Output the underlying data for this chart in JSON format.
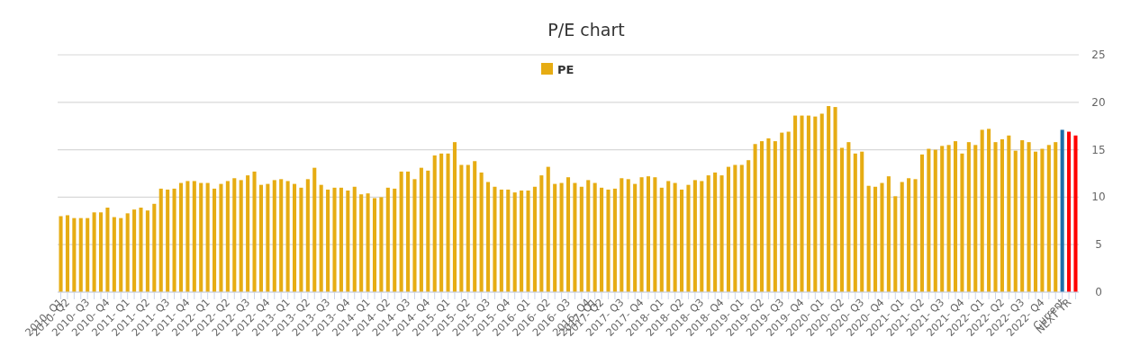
{
  "chart_data": {
    "type": "bar",
    "title": "P/E chart",
    "categories": [
      "2010- Q1",
      "2010- Q2",
      null,
      null,
      "2010- Q3",
      null,
      null,
      "2010- Q4",
      null,
      null,
      "2011- Q1",
      null,
      null,
      "2011- Q2",
      null,
      null,
      "2011- Q3",
      null,
      null,
      "2011- Q4",
      null,
      null,
      "2012- Q1",
      null,
      null,
      "2012- Q2",
      null,
      null,
      "2012- Q3",
      null,
      null,
      "2012- Q4",
      null,
      null,
      "2013- Q1",
      null,
      null,
      "2013- Q2",
      null,
      null,
      "2013- Q3",
      null,
      null,
      "2013- Q4",
      null,
      null,
      "2014- Q1",
      null,
      null,
      "2014- Q2",
      null,
      null,
      "2014- Q3",
      null,
      null,
      "2014- Q4",
      null,
      null,
      "2015- Q1",
      null,
      null,
      "2015- Q2",
      null,
      null,
      "2015- Q3",
      null,
      null,
      "2015- Q4",
      null,
      null,
      "2016- Q1",
      null,
      null,
      "2016- Q2",
      null,
      null,
      "2016- Q3",
      null,
      null,
      "2016- Q4",
      "2017- Q1",
      "2017- Q2",
      null,
      null,
      "2017- Q3",
      null,
      null,
      "2017- Q4",
      null,
      null,
      "2018- Q1",
      null,
      null,
      "2018- Q2",
      null,
      null,
      "2018- Q3",
      null,
      null,
      "2018- Q4",
      null,
      null,
      "2019- Q1",
      null,
      null,
      "2019- Q2",
      null,
      null,
      "2019- Q3",
      null,
      null,
      "2019- Q4",
      null,
      null,
      "2020- Q1",
      null,
      null,
      "2020- Q2",
      null,
      null,
      "2020- Q3",
      null,
      null,
      "2020- Q4",
      null,
      null,
      "2021- Q1",
      null,
      null,
      "2021- Q2",
      null,
      null,
      "2021- Q3",
      null,
      null,
      "2021- Q4",
      null,
      null,
      "2022- Q1",
      null,
      null,
      "2022- Q2",
      null,
      null,
      "2022- Q3",
      null,
      null,
      "2022- Q4",
      null,
      null,
      "Current",
      "NEXT YR",
      null
    ],
    "series": [
      {
        "name": "PE",
        "color": "#e6ac13",
        "values": [
          8.0,
          8.1,
          7.8,
          7.8,
          7.8,
          8.4,
          8.4,
          8.9,
          7.9,
          7.8,
          8.3,
          8.7,
          8.9,
          8.6,
          9.3,
          10.9,
          10.8,
          10.9,
          11.5,
          11.7,
          11.7,
          11.5,
          11.5,
          10.9,
          11.4,
          11.7,
          12.0,
          11.8,
          12.3,
          12.7,
          11.3,
          11.4,
          11.8,
          11.9,
          11.7,
          11.4,
          11.0,
          11.9,
          13.1,
          11.3,
          10.8,
          11.0,
          11.0,
          10.7,
          11.1,
          10.3,
          10.4,
          9.9,
          10.0,
          11.0,
          10.9,
          12.7,
          12.7,
          11.9,
          13.1,
          12.8,
          14.4,
          14.6,
          14.6,
          15.8,
          13.4,
          13.4,
          13.8,
          12.6,
          11.6,
          11.1,
          10.8,
          10.8,
          10.5,
          10.7,
          10.7,
          11.1,
          12.3,
          13.2,
          11.4,
          11.5,
          12.1,
          11.5,
          11.1,
          11.8,
          11.5,
          11.0,
          10.8,
          10.9,
          12.0,
          11.9,
          11.4,
          12.1,
          12.2,
          12.1,
          11.0,
          11.7,
          11.5,
          10.8,
          11.3,
          11.8,
          11.7,
          12.3,
          12.6,
          12.3,
          13.2,
          13.4,
          13.4,
          13.9,
          15.6,
          15.9,
          16.2,
          15.9,
          16.8,
          16.9,
          18.6,
          18.6,
          18.6,
          18.5,
          18.8,
          19.6,
          19.5,
          15.2,
          15.8,
          14.6,
          14.8,
          11.2,
          11.1,
          11.5,
          12.2,
          10.1,
          11.6,
          12.0,
          11.9,
          14.5,
          15.1,
          15.0,
          15.4,
          15.5,
          15.9,
          14.6,
          15.8,
          15.5,
          17.1,
          17.2,
          15.8,
          16.1,
          16.5,
          14.9,
          16.0,
          15.8,
          14.8,
          15.1,
          15.5,
          15.8,
          17.1,
          16.9,
          16.5
        ],
        "colors": [
          "#e6ac13",
          "#e6ac13",
          "#e6ac13",
          "#e6ac13",
          "#e6ac13",
          "#e6ac13",
          "#e6ac13",
          "#e6ac13",
          "#e6ac13",
          "#e6ac13",
          "#e6ac13",
          "#e6ac13",
          "#e6ac13",
          "#e6ac13",
          "#e6ac13",
          "#e6ac13",
          "#e6ac13",
          "#e6ac13",
          "#e6ac13",
          "#e6ac13",
          "#e6ac13",
          "#e6ac13",
          "#e6ac13",
          "#e6ac13",
          "#e6ac13",
          "#e6ac13",
          "#e6ac13",
          "#e6ac13",
          "#e6ac13",
          "#e6ac13",
          "#e6ac13",
          "#e6ac13",
          "#e6ac13",
          "#e6ac13",
          "#e6ac13",
          "#e6ac13",
          "#e6ac13",
          "#e6ac13",
          "#e6ac13",
          "#e6ac13",
          "#e6ac13",
          "#e6ac13",
          "#e6ac13",
          "#e6ac13",
          "#e6ac13",
          "#e6ac13",
          "#e6ac13",
          "#e6ac13",
          "#e6ac13",
          "#e6ac13",
          "#e6ac13",
          "#e6ac13",
          "#e6ac13",
          "#e6ac13",
          "#e6ac13",
          "#e6ac13",
          "#e6ac13",
          "#e6ac13",
          "#e6ac13",
          "#e6ac13",
          "#e6ac13",
          "#e6ac13",
          "#e6ac13",
          "#e6ac13",
          "#e6ac13",
          "#e6ac13",
          "#e6ac13",
          "#e6ac13",
          "#e6ac13",
          "#e6ac13",
          "#e6ac13",
          "#e6ac13",
          "#e6ac13",
          "#e6ac13",
          "#e6ac13",
          "#e6ac13",
          "#e6ac13",
          "#e6ac13",
          "#e6ac13",
          "#e6ac13",
          "#e6ac13",
          "#e6ac13",
          "#e6ac13",
          "#e6ac13",
          "#e6ac13",
          "#e6ac13",
          "#e6ac13",
          "#e6ac13",
          "#e6ac13",
          "#e6ac13",
          "#e6ac13",
          "#e6ac13",
          "#e6ac13",
          "#e6ac13",
          "#e6ac13",
          "#e6ac13",
          "#e6ac13",
          "#e6ac13",
          "#e6ac13",
          "#e6ac13",
          "#e6ac13",
          "#e6ac13",
          "#e6ac13",
          "#e6ac13",
          "#e6ac13",
          "#e6ac13",
          "#e6ac13",
          "#e6ac13",
          "#e6ac13",
          "#e6ac13",
          "#e6ac13",
          "#e6ac13",
          "#e6ac13",
          "#e6ac13",
          "#e6ac13",
          "#e6ac13",
          "#e6ac13",
          "#e6ac13",
          "#e6ac13",
          "#e6ac13",
          "#e6ac13",
          "#e6ac13",
          "#e6ac13",
          "#e6ac13",
          "#e6ac13",
          "#e6ac13",
          "#e6ac13",
          "#e6ac13",
          "#e6ac13",
          "#e6ac13",
          "#e6ac13",
          "#e6ac13",
          "#e6ac13",
          "#e6ac13",
          "#e6ac13",
          "#e6ac13",
          "#e6ac13",
          "#e6ac13",
          "#e6ac13",
          "#e6ac13",
          "#e6ac13",
          "#e6ac13",
          "#e6ac13",
          "#e6ac13",
          "#e6ac13",
          "#e6ac13",
          "#e6ac13",
          "#e6ac13",
          "#e6ac13",
          "#e6ac13",
          "#1f6fa8",
          "#ff0000",
          "#ff0000"
        ]
      }
    ],
    "ylim": [
      0,
      25
    ],
    "yticks": [
      0,
      5,
      10,
      15,
      20,
      25
    ],
    "grid": true,
    "legend": "top"
  }
}
